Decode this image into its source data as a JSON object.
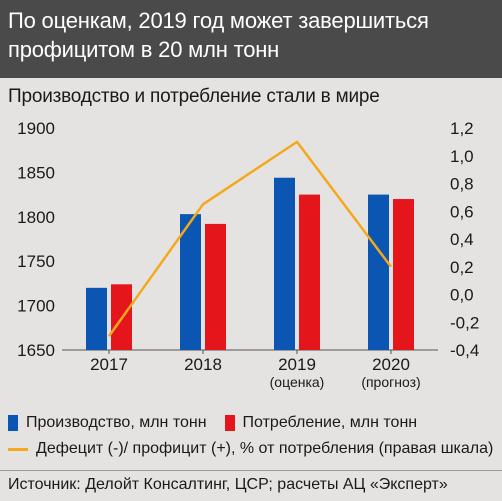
{
  "header": {
    "title": "По оценкам, 2019 год может завершиться профицитом в 20 млн тонн"
  },
  "chart_data": {
    "type": "bar",
    "title": "Производство и потребление стали в мире",
    "categories": [
      "2017",
      "2018",
      "2019",
      "2020"
    ],
    "category_notes": [
      "",
      "",
      "(оценка)",
      "(прогноз)"
    ],
    "series": [
      {
        "name": "Производство, млн тонн",
        "color": "#0b56b3",
        "values": [
          1720,
          1803,
          1844,
          1825
        ]
      },
      {
        "name": "Потребление, млн тонн",
        "color": "#e4161c",
        "values": [
          1724,
          1792,
          1825,
          1820
        ]
      }
    ],
    "line_series": {
      "name": "Дефецит (-)/ профицит (+), % от потребления (правая шкала)",
      "color": "#f5a81c",
      "values": [
        -0.3,
        0.65,
        1.1,
        0.2
      ]
    },
    "ylim": [
      1650,
      1900
    ],
    "y_ticks": [
      "1650",
      "1700",
      "1750",
      "1800",
      "1850",
      "1900"
    ],
    "y2lim": [
      -0.4,
      1.2
    ],
    "y2_ticks": [
      "-0,4",
      "-0,2",
      "0,0",
      "0,2",
      "0,4",
      "0,6",
      "0,8",
      "1,0",
      "1,2"
    ],
    "legend_position": "bottom"
  },
  "source": "Источник: Делойт Консалтинг, ЦСР; расчеты АЦ «Эксперт»"
}
